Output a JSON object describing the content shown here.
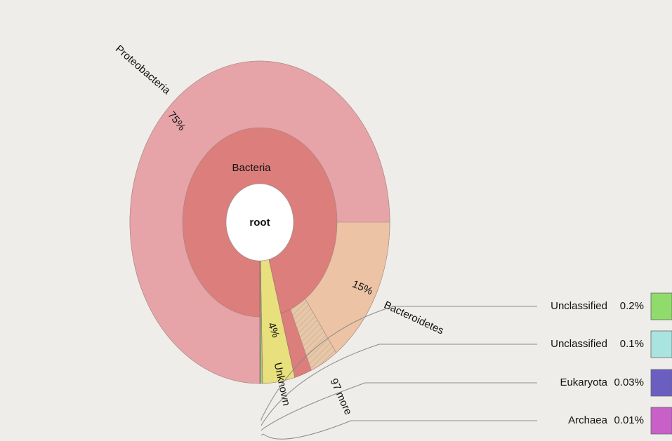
{
  "chart_data": {
    "type": "sunburst",
    "center": {
      "name": "root"
    },
    "nodes": [
      {
        "name": "Bacteria",
        "value": 95.66,
        "color": "#db7e7c",
        "children": [
          {
            "name": "Proteobacteria",
            "value": 75,
            "value_label": "75%",
            "color": "#e6a4a8"
          },
          {
            "name": "Bacteroidetes",
            "value": 15,
            "value_label": "15%",
            "color": "#ecc3a5"
          },
          {
            "name": "97 more",
            "value": 3.5,
            "color": "#e3c2a4"
          }
        ]
      },
      {
        "name": "Unknown",
        "value": 4,
        "value_label": "4%",
        "color": "#e7e07c"
      },
      {
        "name": "Unclassified",
        "value": 0.2,
        "value_label": "0.2%",
        "color": "#8fdc6c"
      },
      {
        "name": "Unclassified",
        "value": 0.1,
        "value_label": "0.1%",
        "color": "#a9e4e0"
      },
      {
        "name": "Eukaryota",
        "value": 0.03,
        "value_label": "0.03%",
        "color": "#6a5ec0"
      },
      {
        "name": "Archaea",
        "value": 0.01,
        "value_label": "0.01%",
        "color": "#c860c8"
      }
    ]
  }
}
